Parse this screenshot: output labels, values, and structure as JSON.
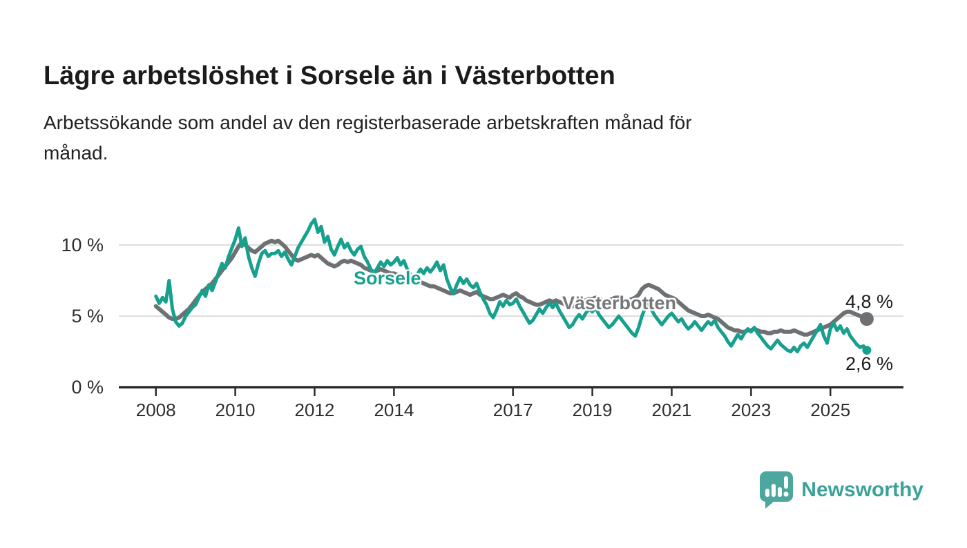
{
  "header": {
    "title": "Lägre arbetslöshet i Sorsele än i Västerbotten",
    "subtitle_lines": [
      "Arbetssökande som andel av den registerbaserade arbetskraften månad för",
      "månad."
    ]
  },
  "chart_data": {
    "type": "line",
    "unit": "%",
    "frequency": "monthly",
    "x_start": "2008-01",
    "x_end": "2025-12",
    "grid": "horizontal",
    "ylim": [
      0,
      12.5
    ],
    "y_ticks": [
      {
        "value": 0,
        "label": "0 %"
      },
      {
        "value": 5,
        "label": "5 %"
      },
      {
        "value": 10,
        "label": "10 %"
      }
    ],
    "x_ticks": [
      {
        "year": 2008,
        "label": "2008"
      },
      {
        "year": 2010,
        "label": "2010"
      },
      {
        "year": 2012,
        "label": "2012"
      },
      {
        "year": 2014,
        "label": "2014"
      },
      {
        "year": 2017,
        "label": "2017"
      },
      {
        "year": 2019,
        "label": "2019"
      },
      {
        "year": 2021,
        "label": "2021"
      },
      {
        "year": 2023,
        "label": "2023"
      },
      {
        "year": 2025,
        "label": "2025"
      }
    ],
    "series": [
      {
        "name": "Sorsele",
        "color": "#17A08E",
        "label_color": "#17A08E",
        "end_value": 2.6,
        "end_label": "2,6 %",
        "values": [
          6.4,
          5.9,
          6.3,
          6.0,
          7.5,
          5.5,
          4.6,
          4.3,
          4.5,
          5.0,
          5.3,
          5.6,
          5.8,
          6.3,
          6.8,
          6.4,
          7.2,
          6.8,
          7.4,
          8.1,
          8.7,
          8.4,
          9.2,
          9.8,
          10.4,
          11.2,
          9.9,
          10.5,
          9.2,
          8.4,
          7.8,
          8.7,
          9.4,
          9.6,
          9.2,
          9.4,
          9.4,
          9.6,
          9.2,
          9.5,
          9.0,
          8.6,
          9.2,
          9.8,
          10.2,
          10.6,
          11.0,
          11.5,
          11.8,
          10.9,
          11.3,
          10.2,
          10.6,
          9.7,
          9.3,
          9.9,
          10.4,
          9.8,
          10.1,
          9.6,
          9.3,
          9.7,
          9.9,
          9.2,
          8.8,
          8.3,
          8.0,
          8.4,
          8.8,
          8.5,
          8.9,
          8.6,
          8.8,
          9.1,
          8.6,
          8.9,
          8.3,
          7.9,
          7.5,
          7.9,
          8.3,
          8.0,
          8.4,
          8.1,
          8.4,
          8.8,
          8.2,
          8.6,
          7.6,
          7.0,
          6.6,
          7.2,
          7.7,
          7.3,
          7.6,
          7.2,
          7.0,
          7.3,
          6.7,
          6.2,
          5.8,
          5.2,
          4.9,
          5.4,
          6.0,
          5.7,
          6.1,
          5.8,
          5.9,
          6.2,
          5.7,
          5.3,
          4.9,
          4.5,
          4.7,
          5.1,
          5.5,
          5.2,
          5.6,
          5.9,
          5.6,
          5.9,
          5.4,
          5.0,
          4.6,
          4.2,
          4.4,
          4.8,
          5.1,
          4.8,
          5.2,
          5.5,
          5.3,
          5.6,
          5.1,
          4.8,
          4.5,
          4.2,
          4.4,
          4.7,
          5.0,
          4.7,
          4.4,
          4.1,
          3.8,
          3.6,
          4.2,
          5.0,
          5.6,
          5.9,
          5.4,
          5.0,
          4.7,
          4.4,
          4.7,
          5.0,
          5.2,
          4.9,
          4.6,
          4.8,
          4.4,
          4.1,
          4.3,
          4.6,
          4.3,
          4.0,
          4.3,
          4.6,
          4.4,
          4.7,
          4.2,
          3.9,
          3.6,
          3.2,
          2.9,
          3.3,
          3.7,
          3.4,
          3.8,
          4.1,
          3.9,
          4.2,
          3.8,
          3.5,
          3.2,
          2.9,
          2.7,
          3.0,
          3.3,
          3.0,
          2.8,
          2.6,
          2.5,
          2.8,
          2.5,
          2.9,
          3.1,
          2.8,
          3.2,
          3.6,
          4.0,
          4.4,
          3.6,
          3.1,
          4.1,
          4.5,
          4.0,
          4.3,
          3.8,
          4.1,
          3.6,
          3.3,
          3.0,
          2.8,
          2.9,
          2.6
        ]
      },
      {
        "name": "Västerbotten",
        "color": "#6E7174",
        "label_color": "#75787B",
        "end_value": 4.8,
        "end_label": "4,8 %",
        "values": [
          5.7,
          5.5,
          5.3,
          5.1,
          4.9,
          4.8,
          4.8,
          4.9,
          5.1,
          5.3,
          5.5,
          5.8,
          6.1,
          6.4,
          6.7,
          6.9,
          7.1,
          7.3,
          7.6,
          7.9,
          8.2,
          8.5,
          8.8,
          9.1,
          9.5,
          9.9,
          10.2,
          10.0,
          9.8,
          9.6,
          9.5,
          9.7,
          9.9,
          10.1,
          10.2,
          10.3,
          10.2,
          10.3,
          10.1,
          9.9,
          9.6,
          9.3,
          9.0,
          8.9,
          9.0,
          9.1,
          9.2,
          9.3,
          9.2,
          9.3,
          9.1,
          8.9,
          8.7,
          8.6,
          8.5,
          8.6,
          8.8,
          8.9,
          8.8,
          8.9,
          8.8,
          8.7,
          8.6,
          8.4,
          8.3,
          8.2,
          8.1,
          8.2,
          8.3,
          8.2,
          8.1,
          8.0,
          8.0,
          7.9,
          7.8,
          7.6,
          7.5,
          7.4,
          7.3,
          7.3,
          7.4,
          7.3,
          7.2,
          7.1,
          7.1,
          7.0,
          6.9,
          6.8,
          6.7,
          6.6,
          6.6,
          6.7,
          6.8,
          6.7,
          6.6,
          6.5,
          6.6,
          6.7,
          6.5,
          6.4,
          6.3,
          6.2,
          6.2,
          6.3,
          6.4,
          6.5,
          6.4,
          6.3,
          6.5,
          6.6,
          6.4,
          6.3,
          6.1,
          6.0,
          5.9,
          5.8,
          5.8,
          5.9,
          6.0,
          6.1,
          6.0,
          6.1,
          6.0,
          5.9,
          5.8,
          5.7,
          5.7,
          5.8,
          5.9,
          6.0,
          6.1,
          6.2,
          6.2,
          6.3,
          6.2,
          6.1,
          6.0,
          6.1,
          6.2,
          6.3,
          6.3,
          6.2,
          6.1,
          6.1,
          6.2,
          6.3,
          6.5,
          6.9,
          7.1,
          7.2,
          7.1,
          7.0,
          6.9,
          6.7,
          6.5,
          6.4,
          6.3,
          6.2,
          6.0,
          5.8,
          5.6,
          5.4,
          5.3,
          5.2,
          5.1,
          5.0,
          5.0,
          5.1,
          5.0,
          4.9,
          4.8,
          4.6,
          4.4,
          4.2,
          4.1,
          4.0,
          4.0,
          3.9,
          3.9,
          4.0,
          4.0,
          4.1,
          4.0,
          3.9,
          3.9,
          3.8,
          3.8,
          3.9,
          3.9,
          4.0,
          3.9,
          3.9,
          3.9,
          4.0,
          3.9,
          3.8,
          3.7,
          3.7,
          3.8,
          3.9,
          4.0,
          4.1,
          4.2,
          4.3,
          4.4,
          4.6,
          4.8,
          5.0,
          5.2,
          5.3,
          5.3,
          5.2,
          5.1,
          5.0,
          4.9,
          4.8
        ]
      }
    ]
  },
  "colors": {
    "grid": "#D8D8D8",
    "axis": "#2B2B2B",
    "tick_text": "#2E2E2E",
    "logo_bubble": "#4CA79F",
    "logo_text": "#3BA29A"
  },
  "footer": {
    "brand": "Newsworthy"
  }
}
